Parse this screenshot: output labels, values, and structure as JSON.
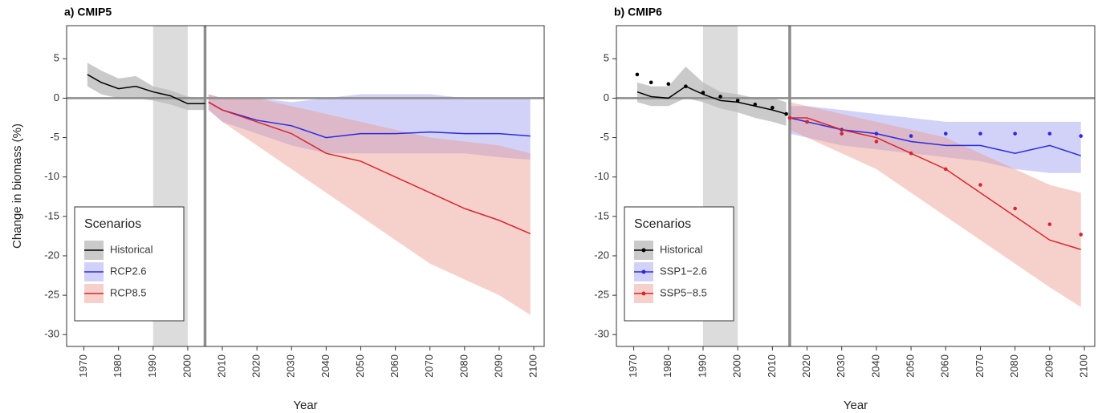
{
  "chart_data": [
    {
      "type": "line",
      "title": "a) CMIP5",
      "xlabel": "Year",
      "ylabel": "Change in biomass (%)",
      "xlim": [
        1965,
        2103
      ],
      "xticks": [
        1970,
        1980,
        1990,
        2000,
        2010,
        2020,
        2030,
        2040,
        2050,
        2060,
        2070,
        2080,
        2090,
        2100
      ],
      "ylim": [
        -31.5,
        9.2
      ],
      "yticks": [
        -30,
        -25,
        -20,
        -15,
        -10,
        -5,
        0,
        5
      ],
      "reference_period": [
        1990,
        2000
      ],
      "projection_start": 2005,
      "legend_title": "Scenarios",
      "legend_position": "bottom-left",
      "series": [
        {
          "name": "Historical",
          "color": "#000000",
          "band_color": "#bdbdbd",
          "x": [
            1971,
            1975,
            1980,
            1985,
            1990,
            1995,
            2000,
            2005
          ],
          "values": [
            3,
            2,
            1.2,
            1.5,
            0.8,
            0.3,
            -0.7,
            -0.7
          ],
          "lower": [
            1.5,
            0.5,
            0,
            0,
            -0.3,
            -0.8,
            -1.5,
            -1.5
          ],
          "upper": [
            4.5,
            3.5,
            2.5,
            2.8,
            1.5,
            1,
            0.2,
            0
          ]
        },
        {
          "name": "RCP2.6",
          "color": "#2a2ae0",
          "band_color": "#9c9cf0",
          "x": [
            2006,
            2010,
            2020,
            2030,
            2040,
            2050,
            2060,
            2070,
            2080,
            2090,
            2099
          ],
          "values": [
            -0.5,
            -1.5,
            -2.8,
            -3.5,
            -5,
            -4.5,
            -4.5,
            -4.3,
            -4.5,
            -4.5,
            -4.8
          ],
          "lower": [
            -1.5,
            -3,
            -4.5,
            -6,
            -7,
            -7,
            -7,
            -7,
            -7,
            -7.5,
            -7.8
          ],
          "upper": [
            0.5,
            0,
            0,
            -0.5,
            0,
            0.5,
            0.5,
            0.5,
            0,
            0,
            0
          ]
        },
        {
          "name": "RCP8.5",
          "color": "#d9262b",
          "band_color": "#eb9a8f",
          "x": [
            2006,
            2010,
            2020,
            2030,
            2040,
            2050,
            2060,
            2070,
            2080,
            2090,
            2099
          ],
          "values": [
            -0.5,
            -1.5,
            -3,
            -4.5,
            -7,
            -8,
            -10,
            -12,
            -14,
            -15.5,
            -17.2
          ],
          "lower": [
            -1.5,
            -3,
            -6,
            -9,
            -12,
            -15,
            -18,
            -21,
            -23,
            -25,
            -27.5
          ],
          "upper": [
            0.5,
            0,
            0,
            -1,
            -2,
            -3,
            -4,
            -5,
            -5.5,
            -6,
            -7
          ]
        }
      ]
    },
    {
      "type": "line",
      "title": "b) CMIP6",
      "xlabel": "Year",
      "xlim": [
        1965,
        2103
      ],
      "xticks": [
        1970,
        1980,
        1990,
        2000,
        2010,
        2020,
        2030,
        2040,
        2050,
        2060,
        2070,
        2080,
        2090,
        2100
      ],
      "ylim": [
        -31.5,
        9.2
      ],
      "yticks": [
        -30,
        -25,
        -20,
        -15,
        -10,
        -5,
        0,
        5
      ],
      "reference_period": [
        1990,
        2000
      ],
      "projection_start": 2015,
      "legend_title": "Scenarios",
      "legend_position": "bottom-left",
      "series": [
        {
          "name": "Historical",
          "color": "#000000",
          "band_color": "#bdbdbd",
          "x": [
            1971,
            1975,
            1980,
            1985,
            1990,
            1995,
            2000,
            2005,
            2010,
            2014
          ],
          "values": [
            0.8,
            0.2,
            0,
            1.5,
            0.5,
            -0.3,
            -0.5,
            -1,
            -1.5,
            -2
          ],
          "markers": [
            3,
            2,
            1.8,
            1.5,
            0.7,
            0.2,
            -0.3,
            -0.8,
            -1.2,
            -2
          ],
          "lower": [
            -0.5,
            -1,
            -1,
            0,
            -0.5,
            -1.3,
            -1.8,
            -2.5,
            -3,
            -3.5
          ],
          "upper": [
            2,
            1.5,
            1.5,
            4,
            2,
            0.8,
            0.5,
            0,
            0,
            -0.5
          ]
        },
        {
          "name": "SSP1−2.6",
          "color": "#2a2ae0",
          "band_color": "#9c9cf0",
          "x": [
            2015,
            2020,
            2030,
            2040,
            2050,
            2060,
            2070,
            2080,
            2090,
            2099
          ],
          "values": [
            -2.5,
            -3,
            -4,
            -4.5,
            -5.5,
            -6,
            -6,
            -7,
            -6,
            -7.3
          ],
          "markers": [
            -2.5,
            -3,
            -4,
            -4.5,
            -4.8,
            -4.5,
            -4.5,
            -4.5,
            -4.5,
            -4.8
          ],
          "lower": [
            -4.5,
            -5,
            -6,
            -6.5,
            -7,
            -7.5,
            -8,
            -9,
            -9.5,
            -9.5
          ],
          "upper": [
            -1,
            -1,
            -1.5,
            -2,
            -2.5,
            -3,
            -3,
            -3,
            -3,
            -3
          ]
        },
        {
          "name": "SSP5−8.5",
          "color": "#d9262b",
          "band_color": "#eb9a8f",
          "x": [
            2015,
            2020,
            2030,
            2040,
            2050,
            2060,
            2070,
            2080,
            2090,
            2099
          ],
          "values": [
            -2.5,
            -2.5,
            -4,
            -5,
            -7,
            -9,
            -12,
            -15,
            -18,
            -19.2
          ],
          "markers": [
            -2.5,
            -3,
            -4.5,
            -5.5,
            -7,
            -9,
            -11,
            -14,
            -16,
            -17.3
          ],
          "lower": [
            -4,
            -5,
            -7,
            -9,
            -12,
            -15,
            -18,
            -21,
            -24,
            -26.5
          ],
          "upper": [
            -0.5,
            -1,
            -2,
            -3,
            -4,
            -5,
            -7,
            -9,
            -11,
            -12
          ]
        }
      ]
    }
  ]
}
